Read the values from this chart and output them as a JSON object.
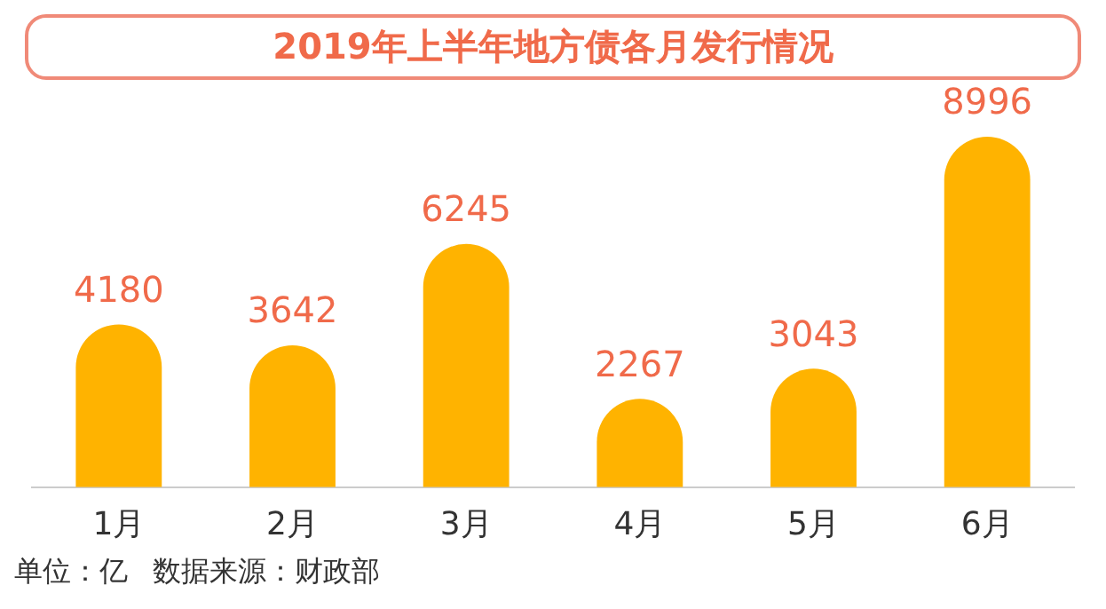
{
  "chart_data": {
    "type": "bar",
    "title": "2019年上半年地方债各月发行情况",
    "categories": [
      "1月",
      "2月",
      "3月",
      "4月",
      "5月",
      "6月"
    ],
    "values": [
      4180,
      3642,
      6245,
      2267,
      3043,
      8996
    ],
    "color": "#ffb300",
    "data_labels": true,
    "grid": false,
    "legend": false,
    "tick_labels": "x",
    "annotations": [
      "单位：亿",
      "数据来源：财政部"
    ]
  }
}
